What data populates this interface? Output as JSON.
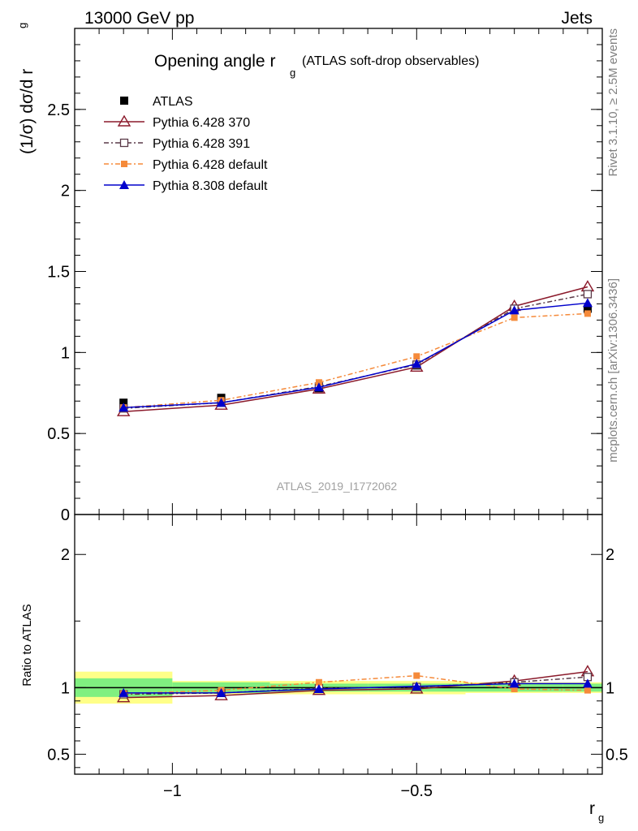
{
  "header": {
    "left": "13000 GeV pp",
    "right": "Jets"
  },
  "side": {
    "rivet": "Rivet 3.1.10, ≥ 2.5M events",
    "mcplots": "mcplots.cern.ch [arXiv:1306.3436]"
  },
  "chart_data": {
    "type": "line",
    "title_main": "Opening angle r",
    "title_sub": "g",
    "title_paren": "(ATLAS soft-drop observables)",
    "analysis_label": "ATLAS_2019_I1772062",
    "xlabel_main": "r",
    "xlabel_sub": "g",
    "ylabel_top": "(1/σ) dσ/d r",
    "ylabel_top_sub": "g",
    "ylabel_bottom": "Ratio to ATLAS",
    "xlim": [
      -1.2,
      -0.12
    ],
    "ylim_top": [
      0,
      3.0
    ],
    "ylim_bottom": [
      0.35,
      2.3
    ],
    "x_ticks": [
      -1,
      -0.5
    ],
    "x_tick_labels": [
      "−1",
      "−0.5"
    ],
    "y_ticks_top": [
      0,
      0.5,
      1,
      1.5,
      2,
      2.5
    ],
    "y_tick_labels_top": [
      "0",
      "0.5",
      "1",
      "1.5",
      "2",
      "2.5"
    ],
    "y_ticks_bottom": [
      0.5,
      1,
      2
    ],
    "y_tick_labels_bottom": [
      "0.5",
      "1",
      "2"
    ],
    "x": [
      -1.1,
      -0.9,
      -0.7,
      -0.5,
      -0.3,
      -0.15
    ],
    "x_edges": [
      -1.2,
      -1.0,
      -0.8,
      -0.6,
      -0.4,
      -0.2,
      -0.12
    ],
    "reference": {
      "name": "ATLAS",
      "values": [
        0.69,
        0.72,
        0.78,
        0.92,
        1.27,
        1.27
      ]
    },
    "band_green": [
      [
        0.93,
        1.07
      ],
      [
        0.96,
        1.04
      ],
      [
        0.97,
        1.03
      ],
      [
        0.97,
        1.03
      ],
      [
        0.97,
        1.03
      ],
      [
        0.97,
        1.03
      ]
    ],
    "band_yellow": [
      [
        0.88,
        1.12
      ],
      [
        0.95,
        1.05
      ],
      [
        0.95,
        1.05
      ],
      [
        0.95,
        1.05
      ],
      [
        0.96,
        1.04
      ],
      [
        0.96,
        1.04
      ]
    ],
    "series": [
      {
        "name": "Pythia 6.428 370",
        "color": "#8b1a2b",
        "dash": "",
        "marker": "triangle-open",
        "values": [
          0.635,
          0.675,
          0.775,
          0.91,
          1.285,
          1.405
        ],
        "ratio": [
          0.925,
          0.94,
          0.98,
          0.99,
          1.05,
          1.12
        ]
      },
      {
        "name": "Pythia 6.428 391",
        "color": "#5a3a48",
        "dash": "6,3,2,3",
        "marker": "square-open",
        "values": [
          0.655,
          0.69,
          0.79,
          0.925,
          1.27,
          1.36
        ],
        "ratio": [
          0.95,
          0.96,
          0.995,
          1.005,
          1.04,
          1.08
        ]
      },
      {
        "name": "Pythia 6.428 default",
        "color": "#f58a3a",
        "dash": "6,3,2,3",
        "marker": "square-filled",
        "values": [
          0.66,
          0.705,
          0.815,
          0.975,
          1.215,
          1.24
        ],
        "ratio": [
          0.955,
          0.98,
          1.04,
          1.09,
          0.99,
          0.98
        ]
      },
      {
        "name": "Pythia 8.308 default",
        "color": "#0000cc",
        "dash": "",
        "marker": "triangle-filled",
        "values": [
          0.66,
          0.69,
          0.785,
          0.93,
          1.26,
          1.305
        ],
        "ratio": [
          0.96,
          0.96,
          0.99,
          1.01,
          1.03,
          1.03
        ]
      }
    ]
  }
}
